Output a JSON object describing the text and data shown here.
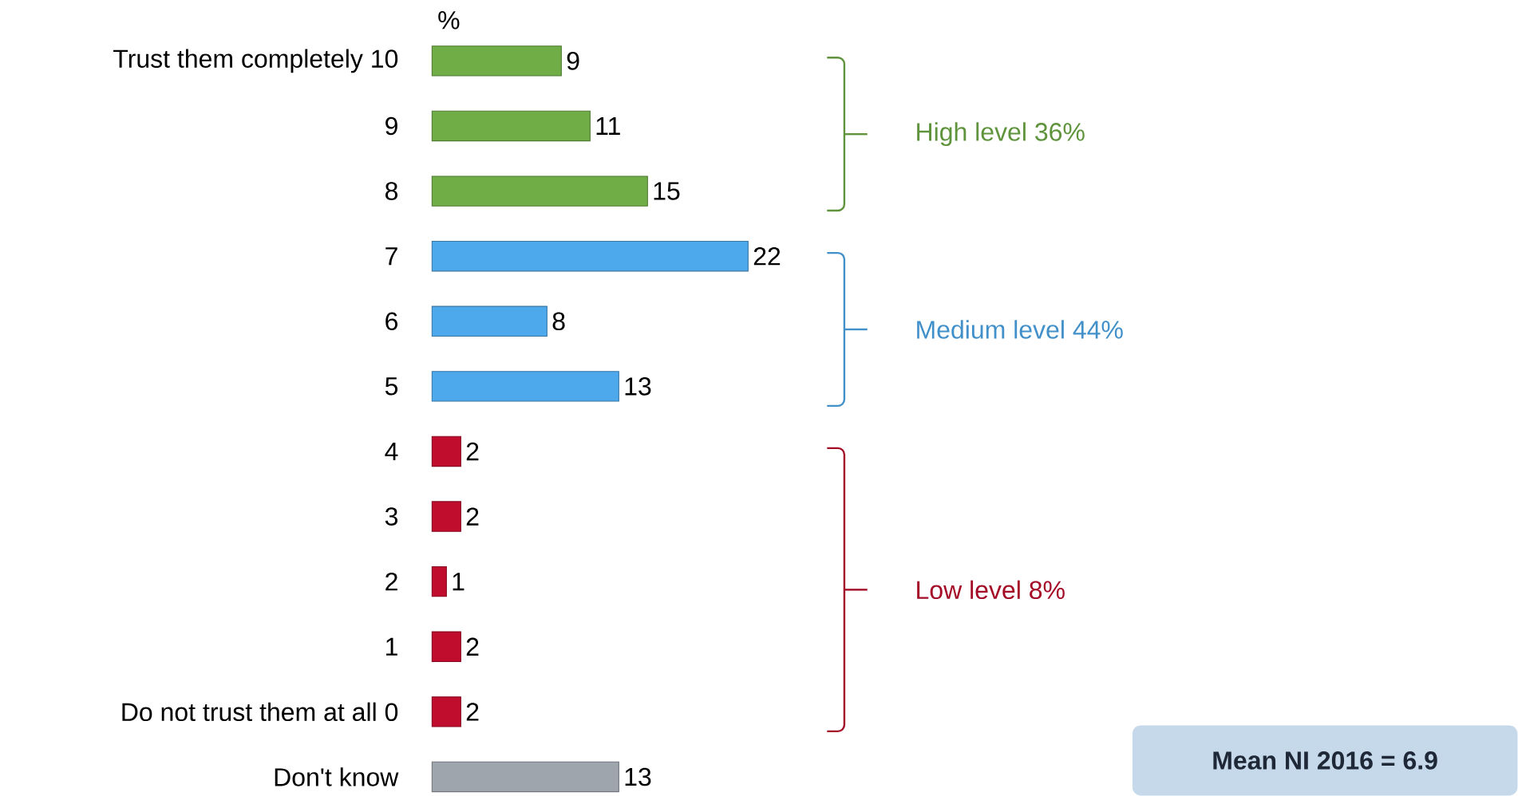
{
  "chart_data": {
    "type": "bar",
    "orientation": "horizontal",
    "categories": [
      "Trust them completely 10",
      "9",
      "8",
      "7",
      "6",
      "5",
      "4",
      "3",
      "2",
      "1",
      "Do not trust them at all 0",
      "Don't know"
    ],
    "values": [
      9,
      11,
      15,
      22,
      8,
      13,
      2,
      2,
      1,
      2,
      2,
      13
    ],
    "colors": [
      "#70ad47",
      "#70ad47",
      "#70ad47",
      "#4ea9ec",
      "#4ea9ec",
      "#4ea9ec",
      "#c00d2e",
      "#c00d2e",
      "#c00d2e",
      "#c00d2e",
      "#c00d2e",
      "#9ea5ad"
    ],
    "data_labels": true,
    "annotations": [
      "%",
      "High level 36%",
      "Medium level 44%",
      "Low level 8%",
      "Mean NI 2016 = 6.9"
    ]
  }
}
